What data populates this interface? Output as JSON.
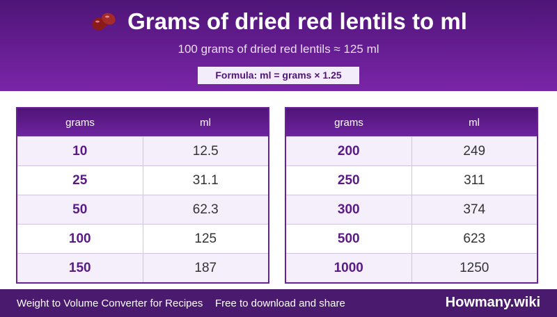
{
  "header": {
    "title": "Grams of dried red lentils to ml",
    "subtitle": "100 grams of dried red lentils ≈ 125 ml",
    "formula": "Formula: ml = grams × 1.25"
  },
  "tables": [
    {
      "columns": [
        "grams",
        "ml"
      ],
      "rows": [
        [
          10,
          12.5
        ],
        [
          25,
          31.1
        ],
        [
          50,
          62.3
        ],
        [
          100,
          125
        ],
        [
          150,
          187
        ]
      ]
    },
    {
      "columns": [
        "grams",
        "ml"
      ],
      "rows": [
        [
          200,
          249
        ],
        [
          250,
          311
        ],
        [
          300,
          374
        ],
        [
          500,
          623
        ],
        [
          1000,
          1250
        ]
      ]
    }
  ],
  "footer": {
    "left": "Weight to Volume Converter for Recipes",
    "middle": "Free to download and share",
    "brand": "Howmany.wiki"
  }
}
